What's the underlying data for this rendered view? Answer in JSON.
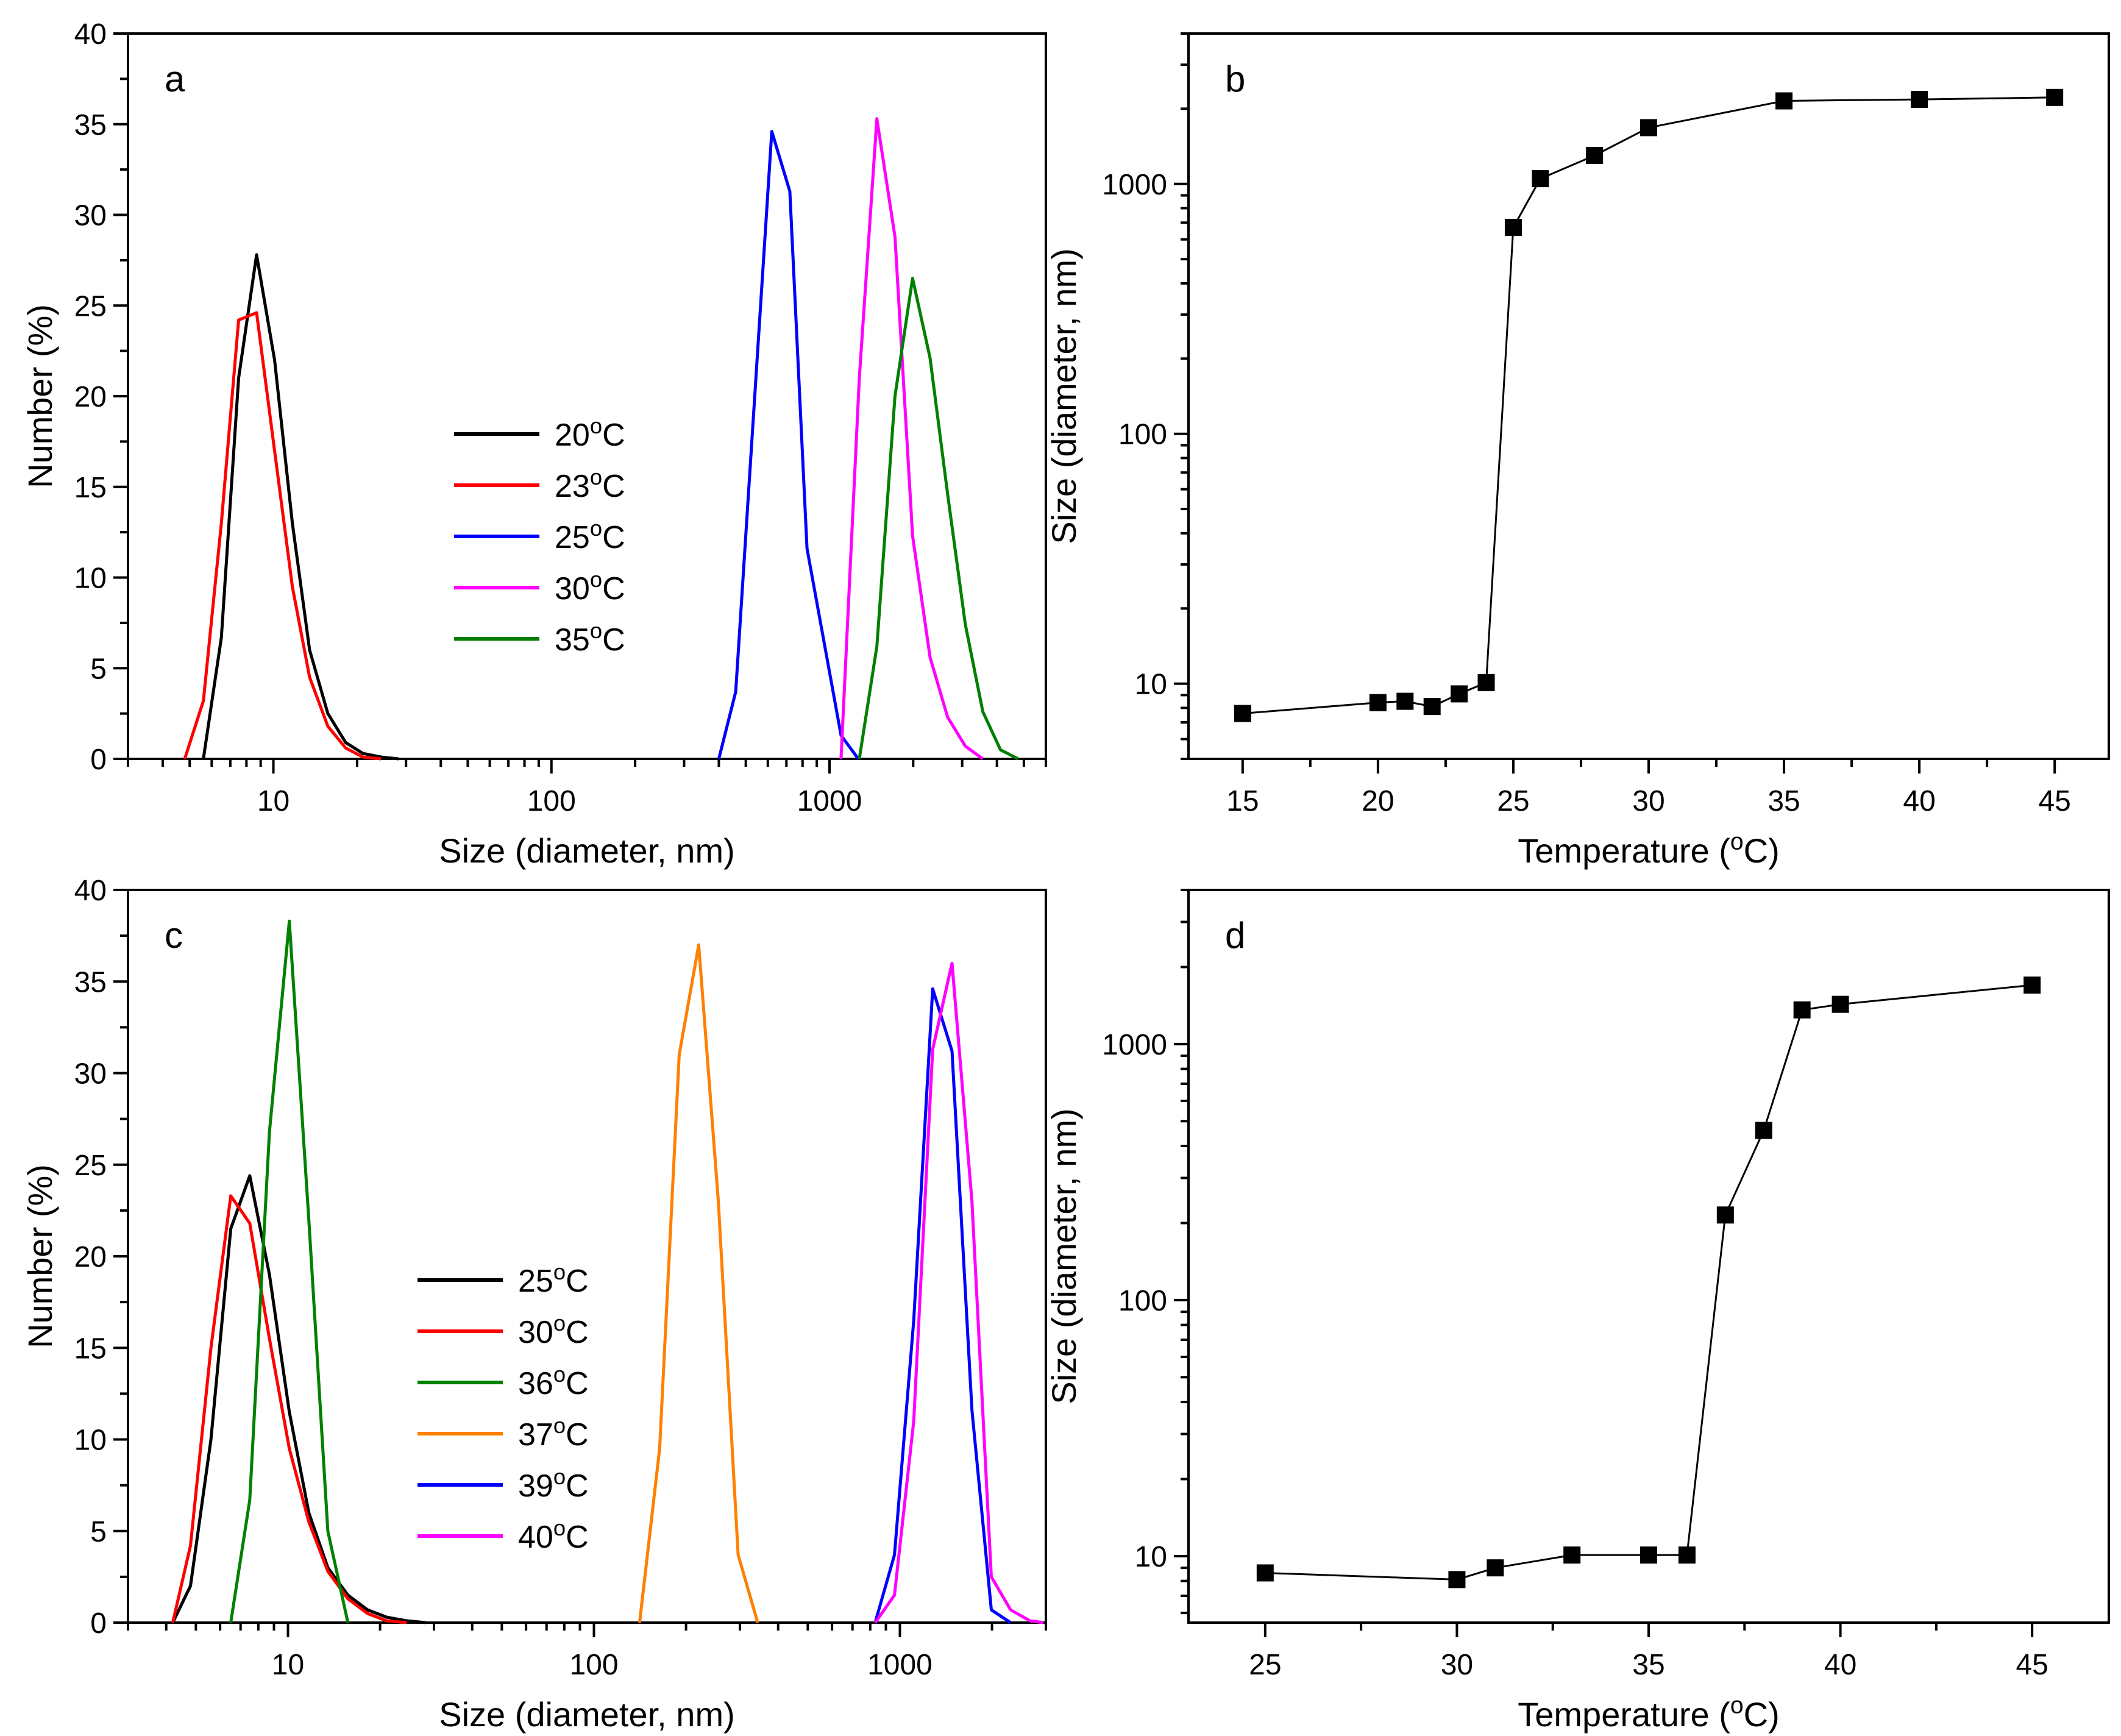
{
  "figure": {
    "panels": [
      "a",
      "b",
      "c",
      "d"
    ]
  },
  "chart_data": [
    {
      "id": "a",
      "type": "line",
      "panel_label": "a",
      "xlabel": "Size (diameter, nm)",
      "ylabel": "Number (%)",
      "xscale": "log",
      "xlim": [
        3,
        6000
      ],
      "ylim": [
        0,
        40
      ],
      "xticks": [
        10,
        100,
        1000
      ],
      "xtick_labels": [
        "10",
        "100",
        "1000"
      ],
      "yticks": [
        0,
        5,
        10,
        15,
        20,
        25,
        30,
        35,
        40
      ],
      "legend_position": "center",
      "series": [
        {
          "name": "20°C",
          "color": "#000000",
          "x": [
            5.6,
            6.5,
            7.5,
            8.7,
            10.1,
            11.7,
            13.5,
            15.7,
            18.2,
            21,
            24.4,
            28.2
          ],
          "y": [
            0,
            6.7,
            21,
            27.8,
            22,
            13,
            6,
            2.5,
            0.9,
            0.3,
            0.1,
            0
          ]
        },
        {
          "name": "23°C",
          "color": "#ff0000",
          "x": [
            4.8,
            5.6,
            6.5,
            7.5,
            8.7,
            10.1,
            11.7,
            13.5,
            15.7,
            18.2,
            21,
            24.4
          ],
          "y": [
            0,
            3.2,
            13,
            24.2,
            24.6,
            17,
            9.5,
            4.5,
            1.8,
            0.6,
            0.1,
            0
          ]
        },
        {
          "name": "25°C",
          "color": "#0000ff",
          "x": [
            400,
            460,
            620,
            720,
            830,
            1100,
            1270
          ],
          "y": [
            0,
            3.7,
            34.6,
            31.3,
            11.6,
            1.3,
            0
          ]
        },
        {
          "name": "30°C",
          "color": "#ff00ff",
          "x": [
            1100,
            1280,
            1480,
            1720,
            1990,
            2300,
            2660,
            3080,
            3560
          ],
          "y": [
            0,
            21,
            35.3,
            28.8,
            12.3,
            5.6,
            2.3,
            0.7,
            0
          ]
        },
        {
          "name": "35°C",
          "color": "#008000",
          "x": [
            1280,
            1480,
            1720,
            1990,
            2300,
            2660,
            3080,
            3560,
            4120,
            4770
          ],
          "y": [
            0,
            6.2,
            20,
            26.5,
            22.1,
            14.6,
            7.4,
            2.6,
            0.5,
            0
          ]
        }
      ]
    },
    {
      "id": "b",
      "type": "scatter",
      "panel_label": "b",
      "xlabel": "Temperature (°C)",
      "ylabel": "Size (diameter, nm)",
      "yscale": "log",
      "xlim": [
        13,
        47
      ],
      "ylim": [
        5,
        4000
      ],
      "xticks": [
        15,
        20,
        25,
        30,
        35,
        40,
        45
      ],
      "yticks": [
        10,
        100,
        1000
      ],
      "ytick_labels": [
        "10",
        "100",
        "1000"
      ],
      "series": [
        {
          "name": "size",
          "color": "#000000",
          "x": [
            15,
            20,
            21,
            22,
            23,
            24,
            25,
            26,
            28,
            30,
            35,
            40,
            45
          ],
          "y": [
            7.6,
            8.4,
            8.5,
            8.1,
            9.1,
            10.1,
            670,
            1050,
            1300,
            1680,
            2150,
            2180,
            2220
          ]
        }
      ]
    },
    {
      "id": "c",
      "type": "line",
      "panel_label": "c",
      "xlabel": "Size (diameter, nm)",
      "ylabel": "Number (%)",
      "xscale": "log",
      "xlim": [
        3,
        3000
      ],
      "ylim": [
        0,
        40
      ],
      "xticks": [
        10,
        100,
        1000
      ],
      "xtick_labels": [
        "10",
        "100",
        "1000"
      ],
      "yticks": [
        0,
        5,
        10,
        15,
        20,
        25,
        30,
        35,
        40
      ],
      "legend_position": "lower-left",
      "series": [
        {
          "name": "25°C",
          "color": "#000000",
          "x": [
            4.2,
            4.8,
            5.6,
            6.5,
            7.5,
            8.7,
            10.1,
            11.7,
            13.5,
            15.7,
            18.2,
            21,
            24.4,
            28.2
          ],
          "y": [
            0,
            2,
            10,
            21.5,
            24.4,
            19,
            11.5,
            6,
            3,
            1.5,
            0.7,
            0.3,
            0.1,
            0
          ]
        },
        {
          "name": "30°C",
          "color": "#ff0000",
          "x": [
            4.2,
            4.8,
            5.6,
            6.5,
            7.5,
            8.7,
            10.1,
            11.7,
            13.5,
            15.7,
            18.2,
            21,
            24.4
          ],
          "y": [
            0,
            4.2,
            15,
            23.3,
            21.8,
            15.5,
            9.5,
            5.5,
            2.8,
            1.3,
            0.5,
            0.1,
            0
          ]
        },
        {
          "name": "36°C",
          "color": "#008000",
          "x": [
            6.5,
            7.5,
            8.7,
            10.1,
            11.7,
            13.5,
            15.7
          ],
          "y": [
            0,
            6.7,
            26.8,
            38.3,
            22,
            5,
            0
          ]
        },
        {
          "name": "37°C",
          "color": "#ff8000",
          "x": [
            141,
            164,
            190,
            220,
            255,
            296,
            343
          ],
          "y": [
            0,
            9.5,
            31,
            37,
            23,
            3.7,
            0
          ]
        },
        {
          "name": "39°C",
          "color": "#0000ff",
          "x": [
            830,
            960,
            1110,
            1280,
            1480,
            1720,
            1990,
            2300
          ],
          "y": [
            0,
            3.7,
            16.5,
            34.6,
            31.2,
            11.6,
            0.7,
            0
          ]
        },
        {
          "name": "40°C",
          "color": "#ff00ff",
          "x": [
            830,
            960,
            1110,
            1280,
            1480,
            1720,
            1990,
            2300,
            2660,
            2950
          ],
          "y": [
            0,
            1.5,
            11,
            31.3,
            36,
            23,
            2.5,
            0.7,
            0.1,
            0
          ]
        }
      ]
    },
    {
      "id": "d",
      "type": "scatter",
      "panel_label": "d",
      "xlabel": "Temperature (°C)",
      "ylabel": "Size (diameter, nm)",
      "yscale": "log",
      "xlim": [
        23,
        47
      ],
      "ylim": [
        5.5,
        4000
      ],
      "xticks": [
        25,
        30,
        35,
        40,
        45
      ],
      "yticks": [
        10,
        100,
        1000
      ],
      "ytick_labels": [
        "10",
        "100",
        "1000"
      ],
      "series": [
        {
          "name": "size",
          "color": "#000000",
          "x": [
            25,
            30,
            31,
            33,
            35,
            36,
            37,
            38,
            39,
            40,
            45
          ],
          "y": [
            8.6,
            8.1,
            9.0,
            10.1,
            10.1,
            10.1,
            215,
            460,
            1360,
            1430,
            1700
          ]
        }
      ]
    }
  ]
}
